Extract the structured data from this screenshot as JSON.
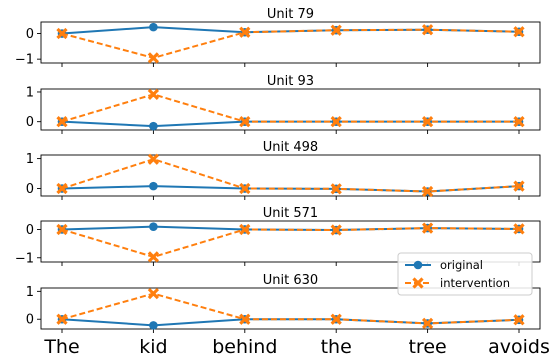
{
  "colors": {
    "original": "#1f77b4",
    "intervention": "#ff7f0e",
    "axis": "#000000",
    "background": "#ffffff"
  },
  "legend": {
    "placement": "lower-right",
    "entries": [
      {
        "label": "original",
        "marker": "circle",
        "line": "solid"
      },
      {
        "label": "intervention",
        "marker": "x-filled",
        "line": "dashed"
      }
    ]
  },
  "chart_data": {
    "type": "line",
    "x_tick_labels": [
      "The",
      "kid",
      "behind",
      "the",
      "tree",
      "avoids"
    ],
    "subplots": [
      {
        "title": "Unit 79",
        "ylim": [
          -1.15,
          0.45
        ],
        "yticks": [
          0,
          -1
        ],
        "ytick_labels": [
          "0",
          "−1"
        ],
        "series": [
          {
            "name": "original",
            "values": [
              0,
              0.25,
              0.05,
              0.13,
              0.15,
              0.07
            ]
          },
          {
            "name": "intervention",
            "values": [
              0,
              -0.95,
              0.05,
              0.13,
              0.15,
              0.07
            ]
          }
        ]
      },
      {
        "title": "Unit 93",
        "ylim": [
          -0.28,
          1.1
        ],
        "yticks": [
          1,
          0
        ],
        "ytick_labels": [
          "1",
          "0"
        ],
        "series": [
          {
            "name": "original",
            "values": [
              0,
              -0.15,
              0,
              0,
              0,
              0
            ]
          },
          {
            "name": "intervention",
            "values": [
              0,
              0.92,
              0,
              0,
              0,
              0
            ]
          }
        ]
      },
      {
        "title": "Unit 498",
        "ylim": [
          -0.25,
          1.12
        ],
        "yticks": [
          1,
          0
        ],
        "ytick_labels": [
          "1",
          "0"
        ],
        "series": [
          {
            "name": "original",
            "values": [
              0,
              0.08,
              0,
              -0.01,
              -0.1,
              0.08
            ]
          },
          {
            "name": "intervention",
            "values": [
              0,
              0.98,
              0,
              -0.01,
              -0.1,
              0.08
            ]
          }
        ]
      },
      {
        "title": "Unit 571",
        "ylim": [
          -1.15,
          0.3
        ],
        "yticks": [
          0,
          -1
        ],
        "ytick_labels": [
          "0",
          "−1"
        ],
        "series": [
          {
            "name": "original",
            "values": [
              0,
              0.1,
              0,
              -0.02,
              0.05,
              0.02
            ]
          },
          {
            "name": "intervention",
            "values": [
              0,
              -0.97,
              0,
              -0.02,
              0.05,
              0.02
            ]
          }
        ]
      },
      {
        "title": "Unit 630",
        "ylim": [
          -0.35,
          1.12
        ],
        "yticks": [
          1,
          0
        ],
        "ytick_labels": [
          "1",
          "0"
        ],
        "series": [
          {
            "name": "original",
            "values": [
              0,
              -0.22,
              0,
              0,
              -0.15,
              -0.02
            ]
          },
          {
            "name": "intervention",
            "values": [
              0,
              0.92,
              0,
              0,
              -0.15,
              -0.02
            ]
          }
        ]
      }
    ]
  }
}
